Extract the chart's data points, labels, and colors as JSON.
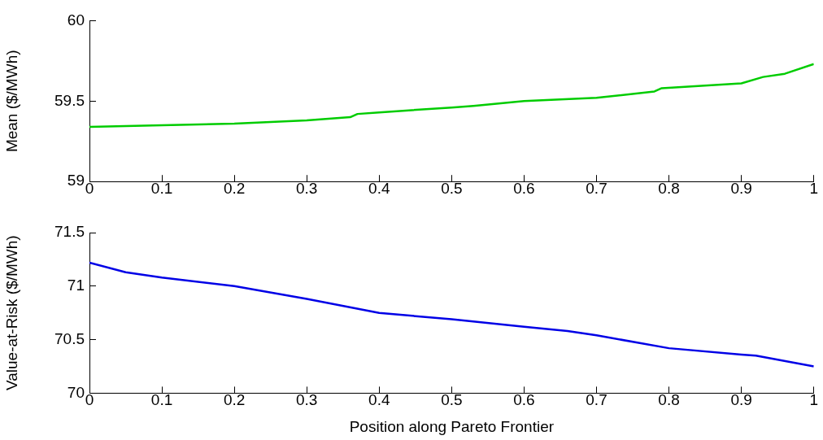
{
  "chart_data": [
    {
      "type": "line",
      "ylabel": "Mean ($/MWh)",
      "series": [
        {
          "color": "#00cc00",
          "x": [
            0,
            0.1,
            0.2,
            0.3,
            0.36,
            0.37,
            0.4,
            0.5,
            0.53,
            0.6,
            0.7,
            0.78,
            0.79,
            0.9,
            0.93,
            0.96,
            1
          ],
          "values": [
            59.34,
            59.35,
            59.36,
            59.38,
            59.4,
            59.42,
            59.43,
            59.46,
            59.47,
            59.5,
            59.52,
            59.56,
            59.58,
            59.61,
            59.65,
            59.67,
            59.73
          ]
        }
      ],
      "xlim": [
        0,
        1
      ],
      "xticks": [
        0,
        0.1,
        0.2,
        0.3,
        0.4,
        0.5,
        0.6,
        0.7,
        0.8,
        0.9,
        1
      ],
      "ylim": [
        59,
        60
      ],
      "yticks": [
        59,
        59.5,
        60
      ],
      "grid": false,
      "legend": false,
      "marker": "none",
      "line_style": "solid"
    },
    {
      "type": "line",
      "xlabel": "Position along Pareto Frontier",
      "ylabel": "Value-at-Risk ($/MWh)",
      "series": [
        {
          "color": "#0000e6",
          "x": [
            0,
            0.05,
            0.1,
            0.2,
            0.3,
            0.4,
            0.5,
            0.6,
            0.66,
            0.7,
            0.8,
            0.9,
            0.92,
            1
          ],
          "values": [
            71.22,
            71.13,
            71.08,
            71.0,
            70.88,
            70.75,
            70.69,
            70.62,
            70.58,
            70.54,
            70.42,
            70.36,
            70.35,
            70.25
          ]
        }
      ],
      "xlim": [
        0,
        1
      ],
      "xticks": [
        0,
        0.1,
        0.2,
        0.3,
        0.4,
        0.5,
        0.6,
        0.7,
        0.8,
        0.9,
        1
      ],
      "ylim": [
        70,
        71.5
      ],
      "yticks": [
        70,
        70.5,
        71,
        71.5
      ],
      "grid": false,
      "legend": false,
      "marker": "none",
      "line_style": "solid"
    }
  ]
}
